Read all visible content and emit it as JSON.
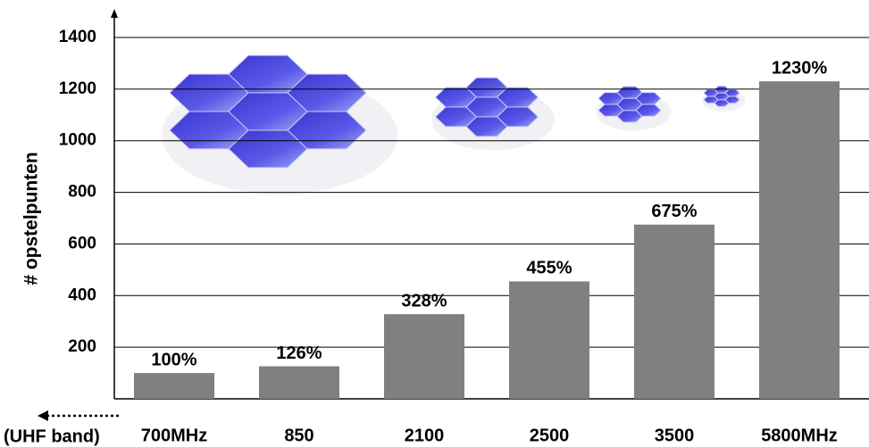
{
  "chart_data": {
    "type": "bar",
    "y_label": "# opstelpunten",
    "x_note": "(UHF band)",
    "categories": [
      "700MHz",
      "850",
      "2100",
      "2500",
      "3500",
      "5800MHz"
    ],
    "values": [
      100,
      126,
      328,
      455,
      675,
      1230
    ],
    "value_labels": [
      "100%",
      "126%",
      "328%",
      "455%",
      "675%",
      "1230%"
    ],
    "color": "#808080",
    "ylim": [
      0,
      1400
    ],
    "yticks": [
      200,
      400,
      600,
      800,
      1000,
      1200,
      1400
    ],
    "grid": true
  }
}
